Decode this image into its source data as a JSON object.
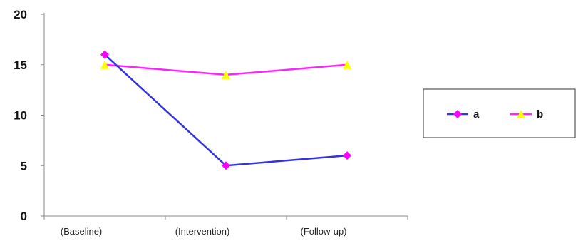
{
  "chart_data": {
    "type": "line",
    "categories": [
      "(Baseline)",
      "(Intervention)",
      "(Follow-up)"
    ],
    "y_ticks": [
      "0",
      "5",
      "10",
      "15",
      "20"
    ],
    "ylim": [
      0,
      20
    ],
    "grid": false,
    "legend_position": "right",
    "series": [
      {
        "name": "a",
        "values": [
          16,
          5,
          6
        ],
        "line_color": "#3333dd",
        "marker": "diamond",
        "marker_color": "#ff00ff"
      },
      {
        "name": "b",
        "values": [
          15,
          14,
          15
        ],
        "line_color": "#ff22ff",
        "marker": "triangle",
        "marker_color": "#ffff00"
      }
    ]
  }
}
